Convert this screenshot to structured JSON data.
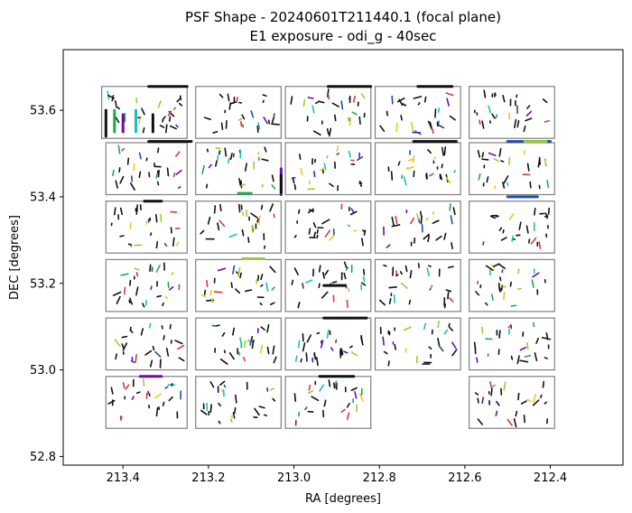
{
  "chart_data": {
    "type": "scatter",
    "title": "PSF Shape - 20240601T211440.1 (focal plane)",
    "subtitle": "E1 exposure - odi_g - 40sec",
    "xlabel": "RA [degrees]",
    "ylabel": "DEC [degrees]",
    "x_inverted": true,
    "xlim": [
      213.54,
      212.23
    ],
    "ylim": [
      52.78,
      53.74
    ],
    "x_ticks": [
      213.4,
      213.2,
      213.0,
      212.8,
      212.6,
      212.4
    ],
    "x_tick_labels": [
      "213.4",
      "213.2",
      "213.0",
      "212.8",
      "212.6",
      "212.4"
    ],
    "y_ticks": [
      52.8,
      53.0,
      53.2,
      53.4,
      53.6
    ],
    "y_tick_labels": [
      "52.8",
      "53.0",
      "53.2",
      "53.4",
      "53.6"
    ],
    "grid": false,
    "legend": "none",
    "ccd_outline_color": "#808080",
    "whisker_colors": [
      "#111111",
      "#6a0dad",
      "#1f4ea8",
      "#17c3b2",
      "#22a84a",
      "#9acd32",
      "#f0c419",
      "#d13b3b"
    ],
    "ccds": [
      {
        "ra_min": 213.25,
        "ra_max": 213.45,
        "dec_min": 53.535,
        "dec_max": 53.655
      },
      {
        "ra_min": 213.03,
        "ra_max": 213.23,
        "dec_min": 53.535,
        "dec_max": 53.655
      },
      {
        "ra_min": 212.82,
        "ra_max": 213.02,
        "dec_min": 53.535,
        "dec_max": 53.655
      },
      {
        "ra_min": 212.61,
        "ra_max": 212.81,
        "dec_min": 53.535,
        "dec_max": 53.655
      },
      {
        "ra_min": 212.39,
        "ra_max": 212.59,
        "dec_min": 53.535,
        "dec_max": 53.655
      },
      {
        "ra_min": 213.25,
        "ra_max": 213.44,
        "dec_min": 53.405,
        "dec_max": 53.525
      },
      {
        "ra_min": 213.03,
        "ra_max": 213.23,
        "dec_min": 53.405,
        "dec_max": 53.525
      },
      {
        "ra_min": 212.82,
        "ra_max": 213.02,
        "dec_min": 53.405,
        "dec_max": 53.525
      },
      {
        "ra_min": 212.61,
        "ra_max": 212.81,
        "dec_min": 53.405,
        "dec_max": 53.525
      },
      {
        "ra_min": 212.39,
        "ra_max": 212.59,
        "dec_min": 53.405,
        "dec_max": 53.525
      },
      {
        "ra_min": 213.25,
        "ra_max": 213.44,
        "dec_min": 53.27,
        "dec_max": 53.39
      },
      {
        "ra_min": 213.03,
        "ra_max": 213.23,
        "dec_min": 53.27,
        "dec_max": 53.39
      },
      {
        "ra_min": 212.82,
        "ra_max": 213.02,
        "dec_min": 53.27,
        "dec_max": 53.39
      },
      {
        "ra_min": 212.61,
        "ra_max": 212.81,
        "dec_min": 53.27,
        "dec_max": 53.39
      },
      {
        "ra_min": 212.39,
        "ra_max": 212.59,
        "dec_min": 53.27,
        "dec_max": 53.39
      },
      {
        "ra_min": 213.25,
        "ra_max": 213.44,
        "dec_min": 53.135,
        "dec_max": 53.255
      },
      {
        "ra_min": 213.03,
        "ra_max": 213.23,
        "dec_min": 53.135,
        "dec_max": 53.255
      },
      {
        "ra_min": 212.82,
        "ra_max": 213.02,
        "dec_min": 53.135,
        "dec_max": 53.255
      },
      {
        "ra_min": 212.61,
        "ra_max": 212.81,
        "dec_min": 53.135,
        "dec_max": 53.255
      },
      {
        "ra_min": 212.39,
        "ra_max": 212.59,
        "dec_min": 53.135,
        "dec_max": 53.255
      },
      {
        "ra_min": 213.25,
        "ra_max": 213.44,
        "dec_min": 53.0,
        "dec_max": 53.12
      },
      {
        "ra_min": 213.03,
        "ra_max": 213.23,
        "dec_min": 53.0,
        "dec_max": 53.12
      },
      {
        "ra_min": 212.82,
        "ra_max": 213.02,
        "dec_min": 53.0,
        "dec_max": 53.12
      },
      {
        "ra_min": 212.61,
        "ra_max": 212.81,
        "dec_min": 53.0,
        "dec_max": 53.12
      },
      {
        "ra_min": 212.39,
        "ra_max": 212.59,
        "dec_min": 53.0,
        "dec_max": 53.12
      },
      {
        "ra_min": 213.25,
        "ra_max": 213.44,
        "dec_min": 52.865,
        "dec_max": 52.985
      },
      {
        "ra_min": 213.03,
        "ra_max": 213.23,
        "dec_min": 52.865,
        "dec_max": 52.985
      },
      {
        "ra_min": 212.82,
        "ra_max": 213.02,
        "dec_min": 52.865,
        "dec_max": 52.985
      },
      {
        "ra_min": 212.39,
        "ra_max": 212.59,
        "dec_min": 52.865,
        "dec_max": 52.985
      }
    ],
    "highlight_whiskers": [
      {
        "ra": 213.34,
        "dec": 53.655,
        "dx": -0.09,
        "dy": 0.0,
        "color": "#111111"
      },
      {
        "ra": 213.44,
        "dec": 53.6,
        "dx": 0.0,
        "dy": -0.06,
        "color": "#111111"
      },
      {
        "ra": 213.42,
        "dec": 53.6,
        "dx": 0.0,
        "dy": -0.05,
        "color": "#22a84a"
      },
      {
        "ra": 213.4,
        "dec": 53.59,
        "dx": 0.0,
        "dy": -0.04,
        "color": "#6a0dad"
      },
      {
        "ra": 213.37,
        "dec": 53.6,
        "dx": 0.0,
        "dy": -0.05,
        "color": "#17c3b2"
      },
      {
        "ra": 213.33,
        "dec": 53.59,
        "dx": 0.0,
        "dy": -0.04,
        "color": "#111111"
      },
      {
        "ra": 213.34,
        "dec": 53.528,
        "dx": -0.1,
        "dy": 0.0,
        "color": "#111111"
      },
      {
        "ra": 212.92,
        "dec": 53.655,
        "dx": -0.1,
        "dy": 0.0,
        "color": "#111111"
      },
      {
        "ra": 212.71,
        "dec": 53.655,
        "dx": -0.08,
        "dy": 0.0,
        "color": "#111111"
      },
      {
        "ra": 212.72,
        "dec": 53.528,
        "dx": -0.1,
        "dy": 0.0,
        "color": "#111111"
      },
      {
        "ra": 212.5,
        "dec": 53.528,
        "dx": -0.1,
        "dy": 0.0,
        "color": "#1f4ea8"
      },
      {
        "ra": 212.46,
        "dec": 53.528,
        "dx": -0.05,
        "dy": 0.0,
        "color": "#9acd32"
      },
      {
        "ra": 213.03,
        "dec": 53.465,
        "dx": 0.0,
        "dy": -0.06,
        "color": "#6a0dad"
      },
      {
        "ra": 213.03,
        "dec": 53.45,
        "dx": 0.0,
        "dy": -0.04,
        "color": "#111111"
      },
      {
        "ra": 213.13,
        "dec": 53.408,
        "dx": -0.03,
        "dy": 0.0,
        "color": "#22a84a"
      },
      {
        "ra": 213.35,
        "dec": 53.39,
        "dx": -0.04,
        "dy": 0.0,
        "color": "#111111"
      },
      {
        "ra": 212.5,
        "dec": 53.4,
        "dx": -0.07,
        "dy": 0.0,
        "color": "#1f4ea8"
      },
      {
        "ra": 213.12,
        "dec": 53.257,
        "dx": -0.05,
        "dy": 0.0,
        "color": "#9acd32"
      },
      {
        "ra": 212.93,
        "dec": 53.195,
        "dx": -0.05,
        "dy": 0.0,
        "color": "#111111"
      },
      {
        "ra": 212.93,
        "dec": 53.12,
        "dx": -0.1,
        "dy": 0.0,
        "color": "#111111"
      },
      {
        "ra": 213.36,
        "dec": 52.985,
        "dx": -0.05,
        "dy": 0.0,
        "color": "#6a0dad"
      },
      {
        "ra": 212.94,
        "dec": 52.985,
        "dx": -0.08,
        "dy": 0.0,
        "color": "#111111"
      }
    ]
  }
}
